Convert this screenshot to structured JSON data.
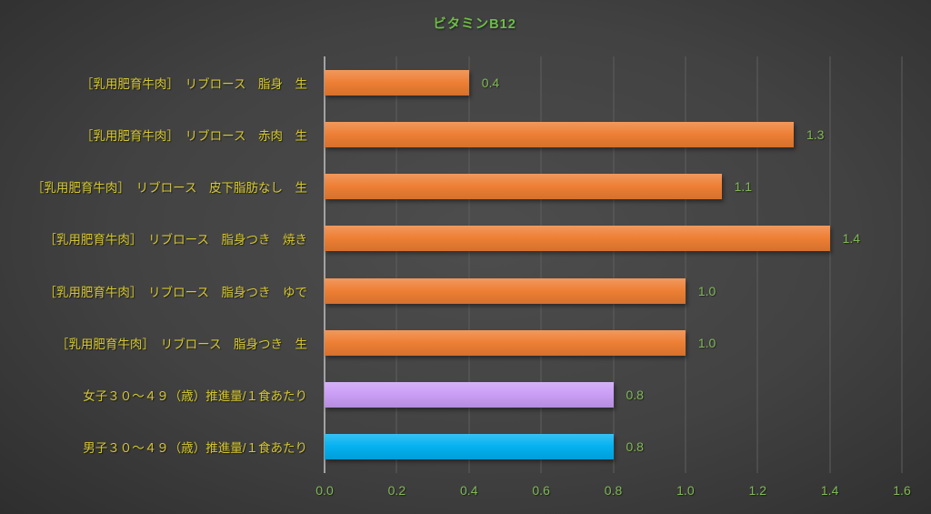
{
  "chart_data": {
    "type": "bar",
    "orientation": "horizontal",
    "title": "ビタミンB12",
    "categories": [
      "［乳用肥育牛肉］　リブロース　脂身　生",
      "［乳用肥育牛肉］　リブロース　赤肉　生",
      "［乳用肥育牛肉］　リブロース　皮下脂肪なし　生",
      "［乳用肥育牛肉］　リブロース　脂身つき　焼き",
      "［乳用肥育牛肉］　リブロース　脂身つき　ゆで",
      "［乳用肥育牛肉］　リブロース　脂身つき　生",
      "女子３０～４９（歳）推進量/１食あたり",
      "男子３０～４９（歳）推進量/１食あたり"
    ],
    "values": [
      0.4,
      1.3,
      1.1,
      1.4,
      1.0,
      1.0,
      0.8,
      0.8
    ],
    "value_labels": [
      "0.4",
      "1.3",
      "1.1",
      "1.4",
      "1.0",
      "1.0",
      "0.8",
      "0.8"
    ],
    "bar_colors": [
      "#ED7D31",
      "#ED7D31",
      "#ED7D31",
      "#ED7D31",
      "#ED7D31",
      "#ED7D31",
      "#C99CF5",
      "#00B0F0"
    ],
    "xlim": [
      0,
      1.6
    ],
    "xticks": [
      "0.0",
      "0.2",
      "0.4",
      "0.6",
      "0.8",
      "1.0",
      "1.2",
      "1.4",
      "1.6"
    ],
    "grid": "vertical",
    "legend": "none",
    "colors": {
      "title_text": "#6DBE45",
      "value_text": "#7FB953",
      "tick_text": "#7FB953",
      "category_text": "#D5C72F",
      "gridline": "#5E5E5E",
      "axis_line": "#A2A2A2",
      "background_center": "#4D4D4D",
      "background_edge": "#242424"
    }
  }
}
